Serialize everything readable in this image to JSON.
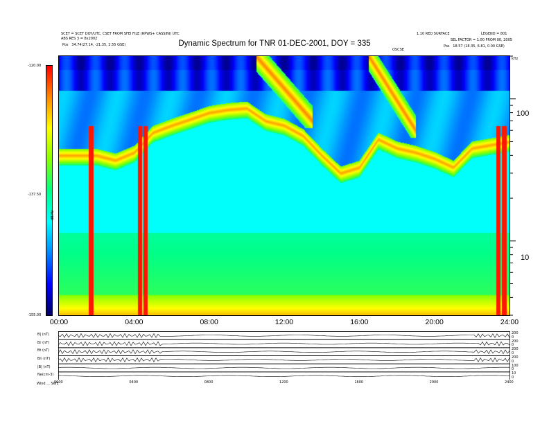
{
  "header": {
    "left_line1": "SCET = SCET DOY/UTC, CSET FROM SFEI FILE (RPWS+ CASSINI) UTC",
    "left_line2": "ABS RES 3 = 8x2002",
    "left_line3_label": "Pos",
    "left_line3_value": "34.74(27.14, -21.35, 2.55 GSE)",
    "right_line1": "1.10 RED SURFACE",
    "right_line1b": "LEGEND = 801",
    "right_line2": "SEL FACTOR = 1.00 FROM 00, 2005",
    "right_line3_label": "Pos",
    "right_line3_value": "18.57 (18.35, 6.81, 0.00 GSE)",
    "marker": "OSCSE"
  },
  "chart_data": {
    "type": "heatmap",
    "title": "Dynamic Spectrum for TNR 01-DEC-2001, DOY = 335",
    "colorbar": {
      "min_label": "-155.00",
      "mid_label": "-137.50",
      "max_label": "-120.00",
      "axis_label": "dB/Hz",
      "colors": [
        "#000060",
        "#0000ff",
        "#0088ff",
        "#00ffff",
        "#00ff88",
        "#88ff00",
        "#ffff00",
        "#ff8800",
        "#ff0000"
      ]
    },
    "x_ticks": [
      "00:00",
      "04:00",
      "08:00",
      "12:00",
      "16:00",
      "20:00",
      "24:00"
    ],
    "x_range_hours": [
      0,
      24
    ],
    "y_ticks": [
      "100",
      "10"
    ],
    "y_tick_values": [
      100,
      10
    ],
    "y_unit": "kHz",
    "y_range": [
      3,
      200
    ],
    "y_scale": "log",
    "band_center_kHz": [
      [
        0,
        40
      ],
      [
        2,
        40
      ],
      [
        3,
        37
      ],
      [
        4,
        42
      ],
      [
        5,
        58
      ],
      [
        6,
        65
      ],
      [
        7,
        72
      ],
      [
        8,
        80
      ],
      [
        9,
        84
      ],
      [
        10,
        86
      ],
      [
        11,
        70
      ],
      [
        12,
        65
      ],
      [
        13,
        55
      ],
      [
        14,
        40
      ],
      [
        15,
        30
      ],
      [
        16,
        33
      ],
      [
        17,
        52
      ],
      [
        18,
        45
      ],
      [
        19,
        42
      ],
      [
        20,
        38
      ],
      [
        21,
        33
      ],
      [
        22,
        45
      ],
      [
        24,
        50
      ]
    ],
    "bursts": [
      {
        "start": 10.5,
        "end": 13.5,
        "top_kHz": 200,
        "bottom_kHz": 70
      },
      {
        "start": 16.5,
        "end": 19.0,
        "top_kHz": 200,
        "bottom_kHz": 60
      }
    ],
    "red_columns_hours": [
      1.7,
      4.3,
      4.6,
      23.4,
      23.7
    ]
  },
  "strips": {
    "labels": [
      "B| (nT)",
      "Br (nT)",
      "Bt (nT)",
      "Bn (nT)",
      "|B| (nT)",
      "Ne(cm-3)"
    ],
    "x_ticks": [
      "0000",
      "0400",
      "0800",
      "1200",
      "1600",
      "2000",
      "2400"
    ],
    "footer_label": "Wind ... SWE",
    "right_tick_sets": [
      [
        "200",
        "0"
      ],
      [
        "200",
        "0"
      ],
      [
        "200",
        "0"
      ],
      [
        "200",
        "0"
      ],
      [
        "100",
        "0"
      ],
      [
        "10",
        "0"
      ]
    ]
  }
}
